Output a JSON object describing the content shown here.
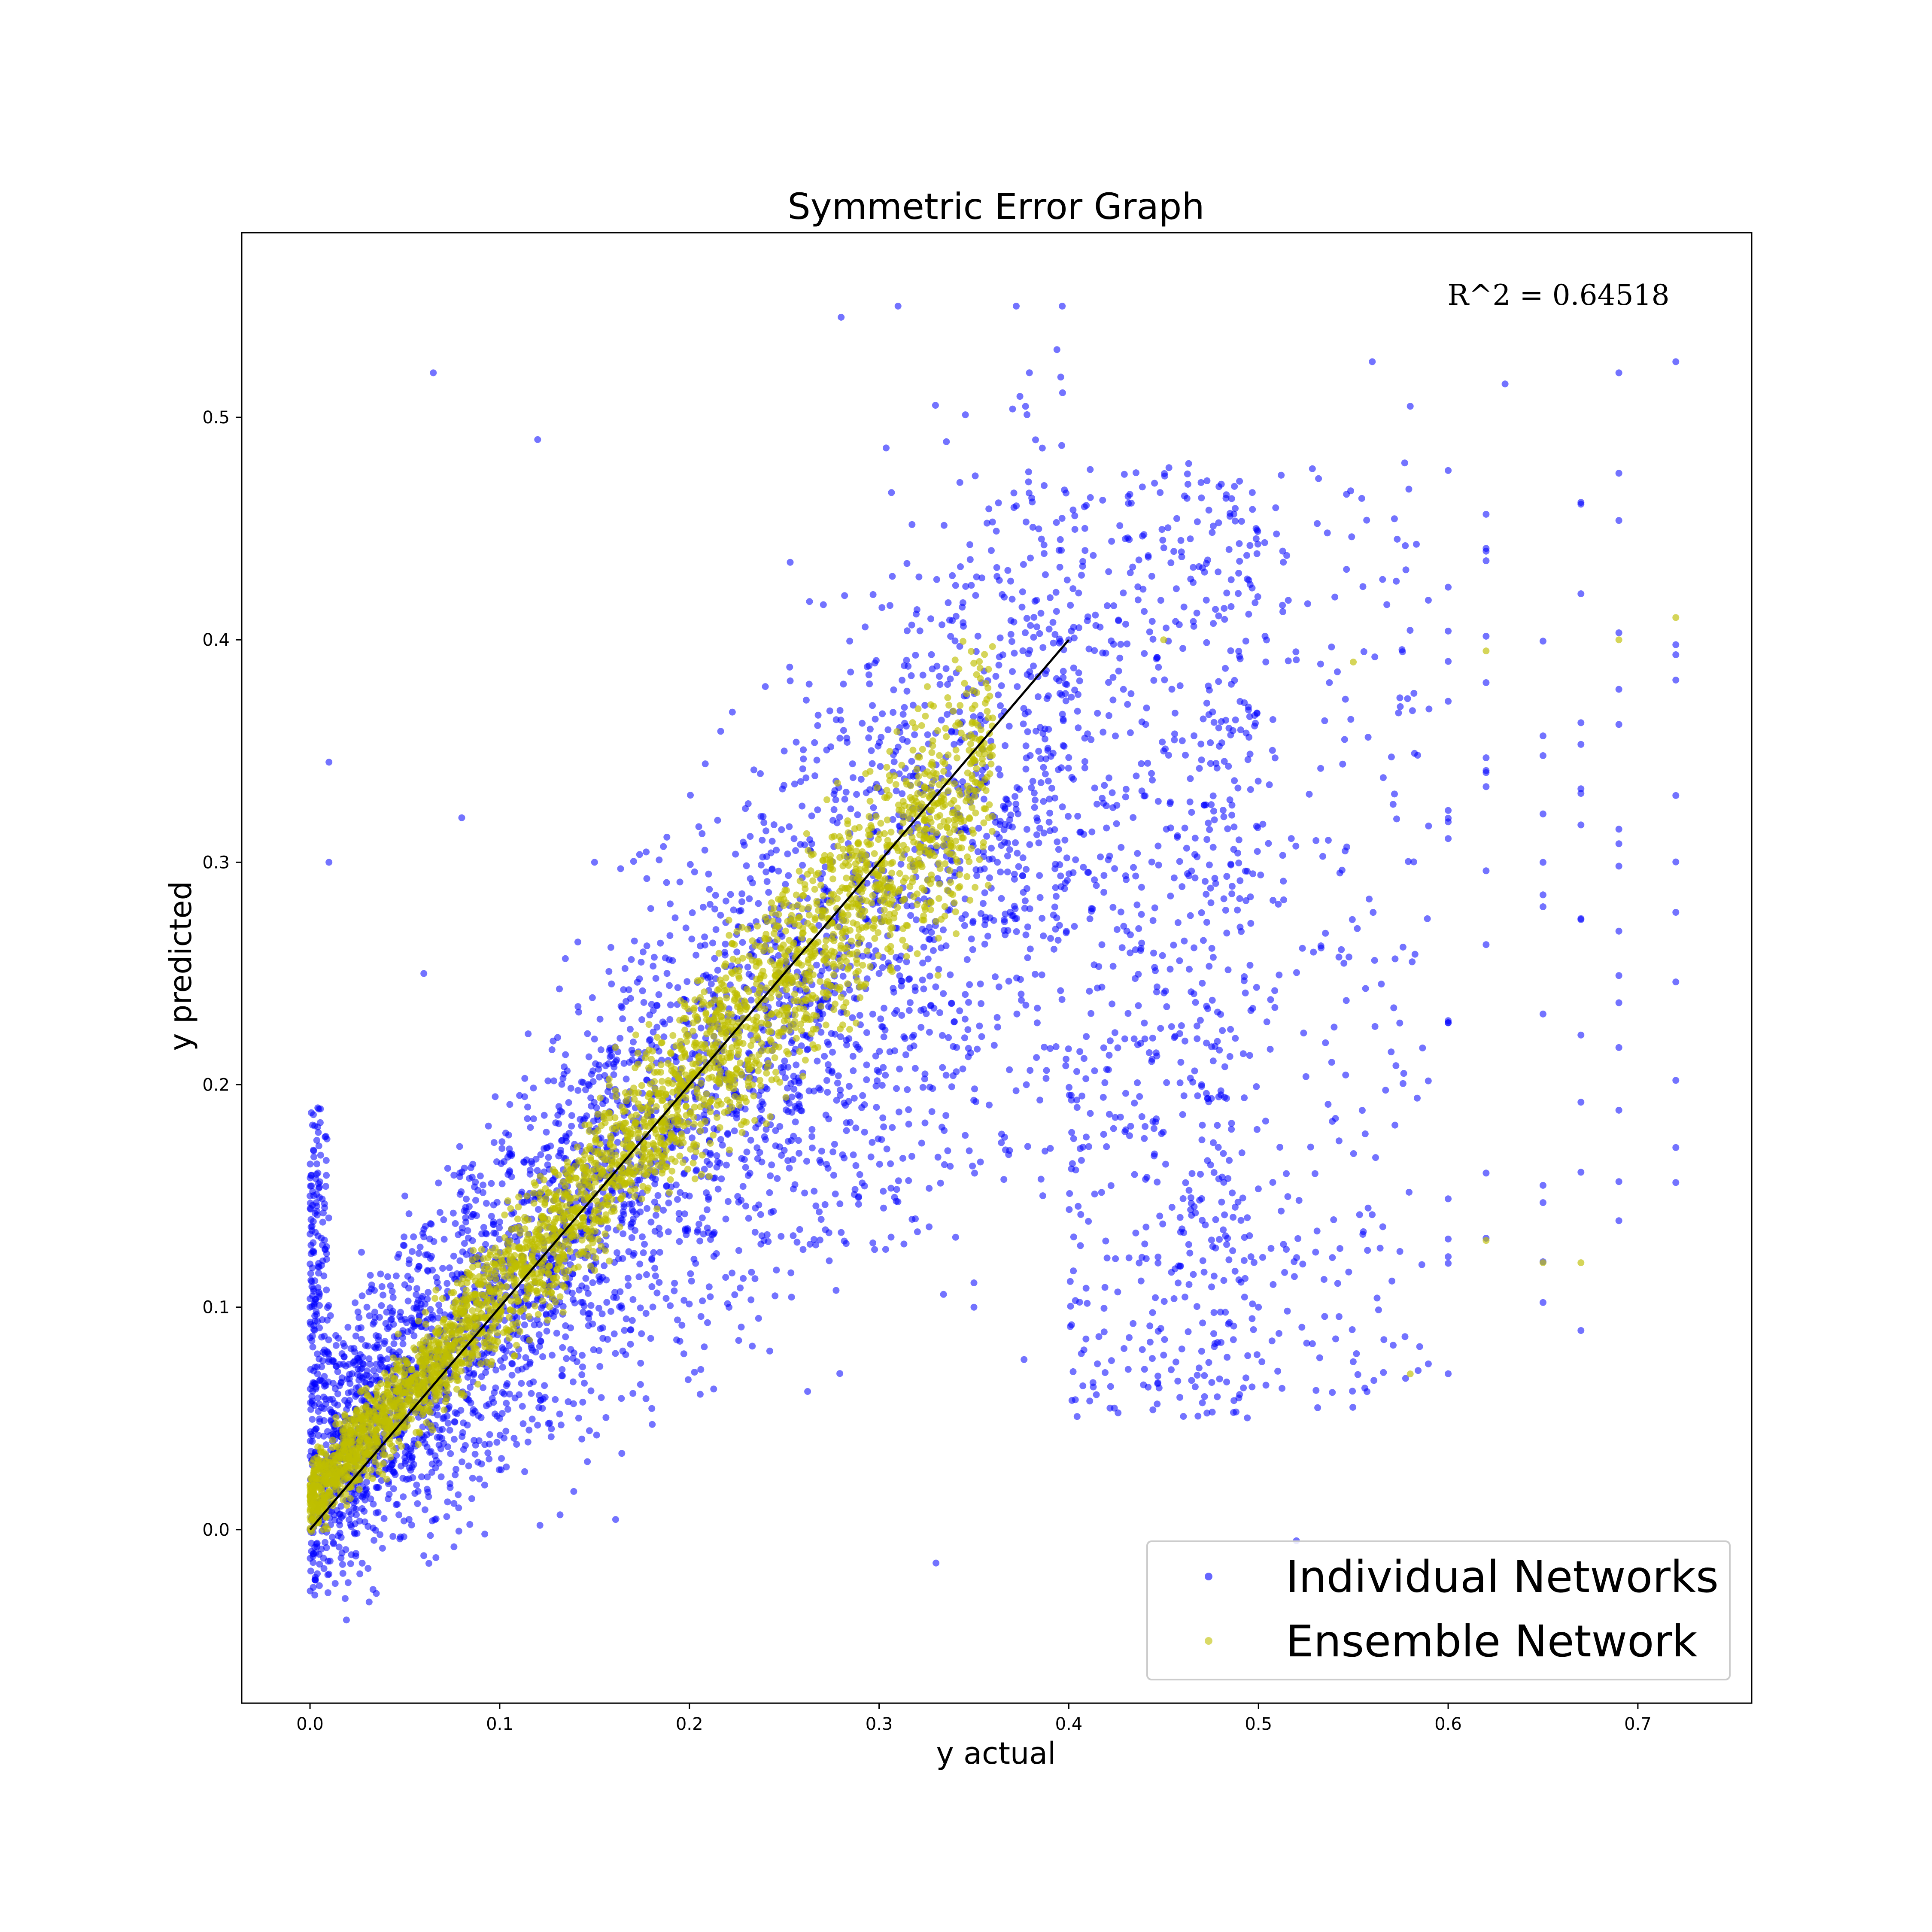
{
  "chart_data": {
    "type": "scatter",
    "title": "Symmetric Error Graph",
    "xlabel": "y actual",
    "ylabel": "y predicted",
    "xlim": [
      -0.036,
      0.76
    ],
    "ylim": [
      -0.078,
      0.583
    ],
    "x_ticks": [
      0.0,
      0.1,
      0.2,
      0.3,
      0.4,
      0.5,
      0.6,
      0.7
    ],
    "x_tick_labels": [
      "0.0",
      "0.1",
      "0.2",
      "0.3",
      "0.4",
      "0.5",
      "0.6",
      "0.7"
    ],
    "y_ticks": [
      0.0,
      0.1,
      0.2,
      0.3,
      0.4,
      0.5
    ],
    "y_tick_labels": [
      "0.0",
      "0.1",
      "0.2",
      "0.3",
      "0.4",
      "0.5"
    ],
    "grid": false,
    "legend_position": "bottom-right",
    "annotation": "R^2 = 0.64518",
    "reference_line": {
      "x": [
        0.0,
        0.4
      ],
      "y": [
        0.0,
        0.4
      ],
      "color": "#000000"
    },
    "series": [
      {
        "name": "Individual Networks",
        "color": "#0000ff",
        "points": [
          [
            0.0,
            0.0
          ],
          [
            0.0,
            0.1
          ],
          [
            0.0,
            0.15
          ],
          [
            0.01,
            -0.02
          ],
          [
            0.01,
            0.3
          ],
          [
            0.01,
            0.345
          ],
          [
            0.02,
            0.05
          ],
          [
            0.03,
            0.1
          ],
          [
            0.05,
            0.15
          ],
          [
            0.06,
            0.25
          ],
          [
            0.065,
            0.52
          ],
          [
            0.08,
            0.32
          ],
          [
            0.1,
            0.05
          ],
          [
            0.12,
            0.49
          ],
          [
            0.15,
            0.3
          ],
          [
            0.2,
            0.15
          ],
          [
            0.25,
            0.35
          ],
          [
            0.28,
            0.545
          ],
          [
            0.3,
            0.25
          ],
          [
            0.31,
            0.55
          ],
          [
            0.33,
            -0.015
          ],
          [
            0.35,
            0.1
          ],
          [
            0.4,
            0.4
          ],
          [
            0.45,
            0.35
          ],
          [
            0.47,
            0.2
          ],
          [
            0.5,
            0.1
          ],
          [
            0.52,
            -0.005
          ],
          [
            0.56,
            0.525
          ],
          [
            0.58,
            0.505
          ],
          [
            0.63,
            0.515
          ],
          [
            0.65,
            0.28
          ],
          [
            0.69,
            0.52
          ],
          [
            0.72,
            0.525
          ],
          [
            0.72,
            0.33
          ]
        ]
      },
      {
        "name": "Ensemble Network",
        "color": "#bfbf00",
        "points": [
          [
            0.0,
            0.02
          ],
          [
            0.05,
            0.07
          ],
          [
            0.1,
            0.11
          ],
          [
            0.15,
            0.17
          ],
          [
            0.2,
            0.2
          ],
          [
            0.25,
            0.25
          ],
          [
            0.3,
            0.29
          ],
          [
            0.35,
            0.35
          ],
          [
            0.45,
            0.4
          ],
          [
            0.55,
            0.39
          ],
          [
            0.62,
            0.395
          ],
          [
            0.69,
            0.4
          ],
          [
            0.72,
            0.41
          ],
          [
            0.58,
            0.07
          ],
          [
            0.62,
            0.13
          ],
          [
            0.65,
            0.12
          ],
          [
            0.67,
            0.12
          ]
        ]
      }
    ]
  }
}
